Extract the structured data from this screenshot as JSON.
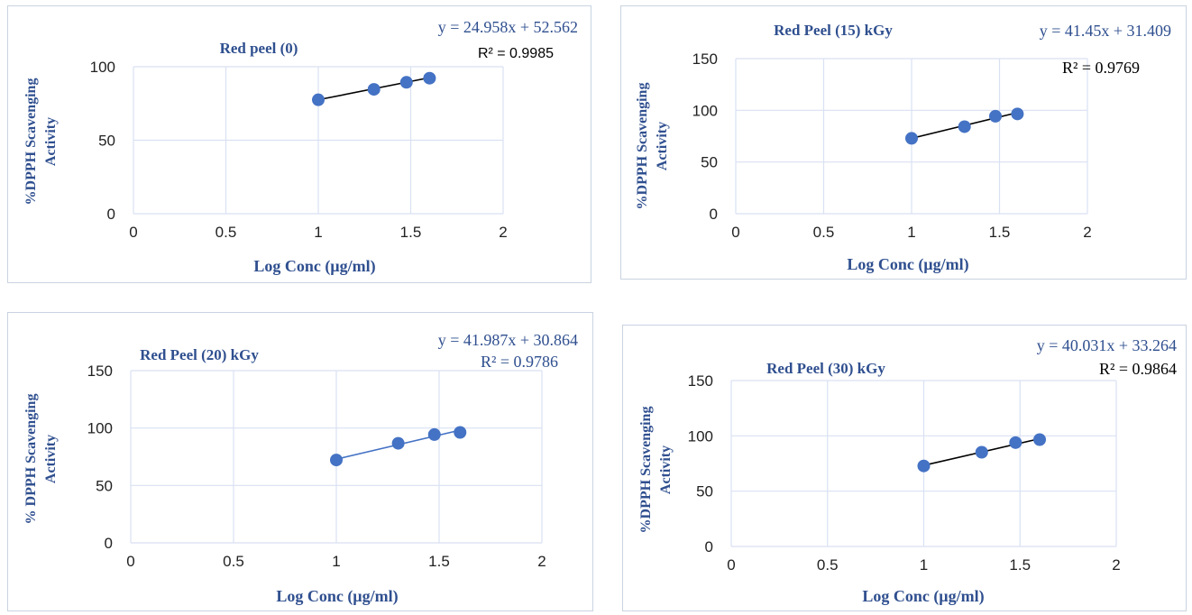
{
  "chart_data": [
    {
      "type": "scatter",
      "title": "Red peel (0)",
      "xlabel": "Log Conc (µg/ml)",
      "ylabel_lines": [
        "%DPPH Scavenging",
        "Activity"
      ],
      "xlim": [
        0,
        2
      ],
      "ylim": [
        0,
        100
      ],
      "x_ticks": [
        0,
        0.5,
        1,
        1.5,
        2
      ],
      "x_tick_labels": [
        "0",
        "0.5",
        "1",
        "1.5",
        "2"
      ],
      "y_ticks": [
        0,
        50,
        100
      ],
      "y_tick_labels": [
        "0",
        "50",
        "100"
      ],
      "grid": true,
      "series": [
        {
          "x": [
            1.0,
            1.301,
            1.477,
            1.602
          ],
          "y": [
            77.5,
            84.6,
            89.4,
            92.2
          ]
        }
      ],
      "trendline": {
        "slope": 24.958,
        "intercept": 52.562
      },
      "equation": "y = 24.958x + 52.562",
      "r_squared": "R² = 0.9985",
      "colors": {
        "marker": "#4472c4",
        "line": "#000000",
        "grid": "#d9e1f2",
        "text": "#2f4f8f"
      }
    },
    {
      "type": "scatter",
      "title": "Red Peel (15) kGy",
      "xlabel": "Log Conc (µg/ml)",
      "ylabel_lines": [
        "%DPPH Scavenging",
        "Activity"
      ],
      "xlim": [
        0,
        2
      ],
      "ylim": [
        0,
        150
      ],
      "x_ticks": [
        0,
        0.5,
        1,
        1.5,
        2
      ],
      "x_tick_labels": [
        "0",
        "0.5",
        "1",
        "1.5",
        "2"
      ],
      "y_ticks": [
        0,
        50,
        100,
        150
      ],
      "y_tick_labels": [
        "0",
        "50",
        "100",
        "150"
      ],
      "grid": true,
      "series": [
        {
          "x": [
            1.0,
            1.301,
            1.477,
            1.602
          ],
          "y": [
            72.9,
            84.2,
            94.3,
            96.5
          ]
        }
      ],
      "trendline": {
        "slope": 41.45,
        "intercept": 31.409
      },
      "equation": "y = 41.45x + 31.409",
      "r_squared": "R² = 0.9769",
      "colors": {
        "marker": "#4472c4",
        "line": "#000000",
        "grid": "#d9e1f2",
        "text": "#2f4f8f"
      }
    },
    {
      "type": "scatter",
      "title": "Red Peel (20) kGy",
      "xlabel": "Log Conc (µg/ml)",
      "ylabel_lines": [
        "% DPPH Scavenging",
        "Activity"
      ],
      "xlim": [
        0,
        2
      ],
      "ylim": [
        0,
        150
      ],
      "x_ticks": [
        0,
        0.5,
        1,
        1.5,
        2
      ],
      "x_tick_labels": [
        "0",
        "0.5",
        "1",
        "1.5",
        "2"
      ],
      "y_ticks": [
        0,
        50,
        100,
        150
      ],
      "y_tick_labels": [
        "0",
        "50",
        "100",
        "150"
      ],
      "grid": true,
      "series": [
        {
          "x": [
            1.0,
            1.301,
            1.477,
            1.602
          ],
          "y": [
            72.2,
            86.7,
            94.3,
            96.2
          ]
        }
      ],
      "trendline": {
        "slope": 41.987,
        "intercept": 30.864
      },
      "equation": "y = 41.987x + 30.864",
      "r_squared": "R² = 0.9786",
      "colors": {
        "marker": "#4472c4",
        "line": "#4472c4",
        "grid": "#d9e1f2",
        "text": "#2f4f8f"
      }
    },
    {
      "type": "scatter",
      "title": "Red Peel (30) kGy",
      "xlabel": "Log Conc (µg/ml)",
      "ylabel_lines": [
        "%DPPH Scavenging",
        "Activity"
      ],
      "xlim": [
        0,
        2
      ],
      "ylim": [
        0,
        150
      ],
      "x_ticks": [
        0,
        0.5,
        1,
        1.5,
        2
      ],
      "x_tick_labels": [
        "0",
        "0.5",
        "1",
        "1.5",
        "2"
      ],
      "y_ticks": [
        0,
        50,
        100,
        150
      ],
      "y_tick_labels": [
        "0",
        "50",
        "100",
        "150"
      ],
      "grid": true,
      "series": [
        {
          "x": [
            1.0,
            1.301,
            1.477,
            1.602
          ],
          "y": [
            72.8,
            85.2,
            93.9,
            96.6
          ]
        }
      ],
      "trendline": {
        "slope": 40.031,
        "intercept": 33.264
      },
      "equation": "y = 40.031x + 33.264",
      "r_squared": "R² = 0.9864",
      "colors": {
        "marker": "#4472c4",
        "line": "#000000",
        "grid": "#d9e1f2",
        "text": "#2f4f8f"
      }
    }
  ]
}
